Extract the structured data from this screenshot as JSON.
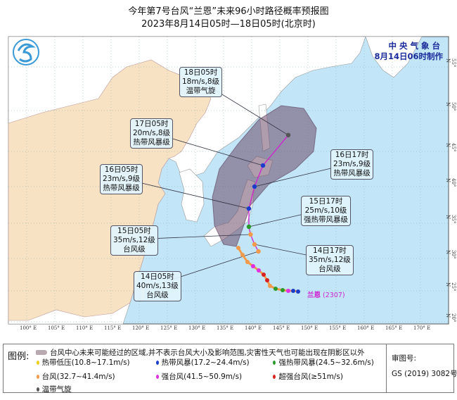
{
  "title": "今年第7号台风“兰恩”未来96小时路径概率预报图",
  "subtitle": "2023年8月14日05时—18日05时(北京时)",
  "agency": {
    "name": "中央气象台",
    "made": "8月14日06时制作"
  },
  "storm_label": "兰恩",
  "storm_id": "(2307)",
  "lon_ticks": [
    "100° E",
    "105° E",
    "110° E",
    "115° E",
    "120° E",
    "125° E",
    "130° E",
    "135° E",
    "140° E",
    "145° E",
    "150° E",
    "155° E",
    "160° E",
    "165° E",
    "170° E"
  ],
  "lat_ticks": [
    "55° N",
    "50° N",
    "45° N",
    "40° N",
    "35° N",
    "30° N",
    "25° N",
    "20° N"
  ],
  "forecast_points": [
    {
      "time": "18日05时",
      "wind": "18m/s,8级",
      "grade": "温带气旋",
      "lon": 146.5,
      "lat": 47,
      "color": "#555555"
    },
    {
      "time": "17日05时",
      "wind": "20m/s,8级",
      "grade": "热带风暴级",
      "lon": 142,
      "lat": 43,
      "color": "#1c3ccc"
    },
    {
      "time": "16日17时",
      "wind": "23m/s,9级",
      "grade": "热带风暴级",
      "lon": 140.5,
      "lat": 40,
      "color": "#1c3ccc"
    },
    {
      "time": "16日05时",
      "wind": "23m/s,9级",
      "grade": "热带风暴级",
      "lon": 139.5,
      "lat": 37,
      "color": "#1c3ccc"
    },
    {
      "time": "15日17时",
      "wind": "25m/s,10级",
      "grade": "强热带风暴级",
      "lon": 139.5,
      "lat": 34.5,
      "color": "#2a9a2a"
    },
    {
      "time": "15日05时",
      "wind": "35m/s,12级",
      "grade": "台风级",
      "lon": 139.8,
      "lat": 33.4,
      "color": "#f39a4a"
    },
    {
      "time": "14日17时",
      "wind": "35m/s,12级",
      "grade": "台风级",
      "lon": 140.5,
      "lat": 32,
      "color": "#f39a4a"
    },
    {
      "time": "14日05时",
      "wind": "40m/s,13级",
      "grade": "台风级",
      "lon": 141.2,
      "lat": 31,
      "color": "#f39a4a"
    }
  ],
  "legend": {
    "title": "图例:",
    "cone": "台风中心未来可能经过的区域,并不表示台风大小及影响范围,灾害性天气也可能出现在阴影区以外",
    "items": [
      {
        "label": "热带低压(10.8~17.1m/s)",
        "color": "#f0d020"
      },
      {
        "label": "热带风暴(17.2~24.4m/s)",
        "color": "#1c3ccc"
      },
      {
        "label": "强热带风暴(24.5~32.6m/s)",
        "color": "#2a9a2a"
      },
      {
        "label": "台风(32.7~41.4m/s)",
        "color": "#f39a4a"
      },
      {
        "label": "强台风(41.5~50.9m/s)",
        "color": "#e030e0"
      },
      {
        "label": "超强台风(≥51m/s)",
        "color": "#d82020"
      },
      {
        "label": "温带气旋",
        "color": "#555555"
      }
    ],
    "review_label": "审图号:",
    "review_no": "GS (2019) 3082号"
  },
  "colors": {
    "ocean": "#c2e6f8",
    "china": "#f8e2c4",
    "land": "#ffffff",
    "cone": "#7a5a78",
    "track": "#d020d0"
  }
}
